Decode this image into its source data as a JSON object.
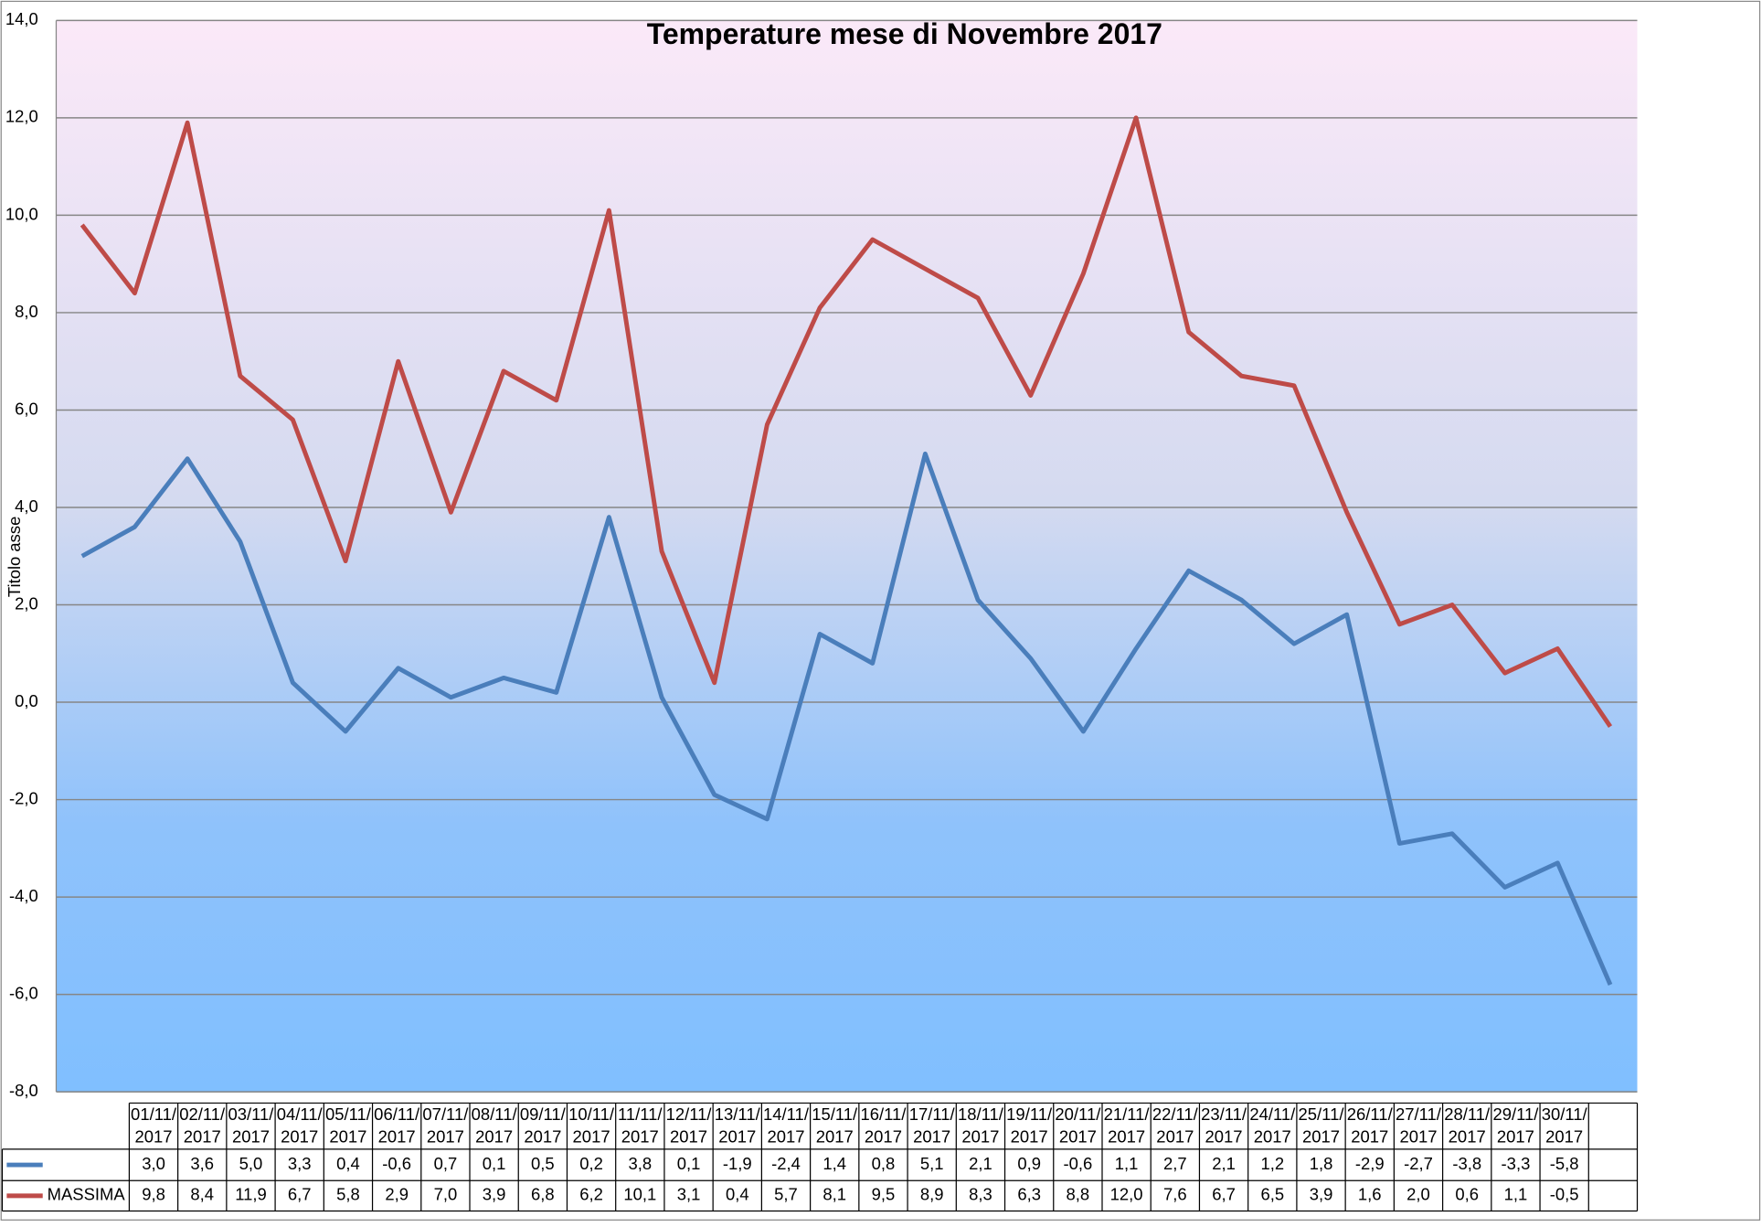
{
  "chart_data": {
    "type": "line",
    "title": "Temperature mese di Novembre 2017",
    "y_label": "Titolo asse",
    "categories": [
      "01/11/2017",
      "02/11/2017",
      "03/11/2017",
      "04/11/2017",
      "05/11/2017",
      "06/11/2017",
      "07/11/2017",
      "08/11/2017",
      "09/11/2017",
      "10/11/2017",
      "11/11/2017",
      "12/11/2017",
      "13/11/2017",
      "14/11/2017",
      "15/11/2017",
      "16/11/2017",
      "17/11/2017",
      "18/11/2017",
      "19/11/2017",
      "20/11/2017",
      "21/11/2017",
      "22/11/2017",
      "23/11/2017",
      "24/11/2017",
      "25/11/2017",
      "26/11/2017",
      "27/11/2017",
      "28/11/2017",
      "29/11/2017",
      "30/11/2017"
    ],
    "series": [
      {
        "name": null,
        "color": "#4a7ebb",
        "values": [
          3.0,
          3.6,
          5.0,
          3.3,
          0.4,
          -0.6,
          0.7,
          0.1,
          0.5,
          0.2,
          3.8,
          0.1,
          -1.9,
          -2.4,
          1.4,
          0.8,
          5.1,
          2.1,
          0.9,
          -0.6,
          1.1,
          2.7,
          2.1,
          1.2,
          1.8,
          -2.9,
          -2.7,
          -3.8,
          -3.3,
          -5.8
        ],
        "value_labels": [
          "3,0",
          "3,6",
          "5,0",
          "3,3",
          "0,4",
          "-0,6",
          "0,7",
          "0,1",
          "0,5",
          "0,2",
          "3,8",
          "0,1",
          "-1,9",
          "-2,4",
          "1,4",
          "0,8",
          "5,1",
          "2,1",
          "0,9",
          "-0,6",
          "1,1",
          "2,7",
          "2,1",
          "1,2",
          "1,8",
          "-2,9",
          "-2,7",
          "-3,8",
          "-3,3",
          "-5,8"
        ]
      },
      {
        "name": "MASSIMA",
        "color": "#be4b48",
        "values": [
          9.8,
          8.4,
          11.9,
          6.7,
          5.8,
          2.9,
          7.0,
          3.9,
          6.8,
          6.2,
          10.1,
          3.1,
          0.4,
          5.7,
          8.1,
          9.5,
          8.9,
          8.3,
          6.3,
          8.8,
          12.0,
          7.6,
          6.7,
          6.5,
          3.9,
          1.6,
          2.0,
          0.6,
          1.1,
          -0.5
        ],
        "value_labels": [
          "9,8",
          "8,4",
          "11,9",
          "6,7",
          "5,8",
          "2,9",
          "7,0",
          "3,9",
          "6,8",
          "6,2",
          "10,1",
          "3,1",
          "0,4",
          "5,7",
          "8,1",
          "9,5",
          "8,9",
          "8,3",
          "6,3",
          "8,8",
          "12,0",
          "7,6",
          "6,7",
          "6,5",
          "3,9",
          "1,6",
          "2,0",
          "0,6",
          "1,1",
          "-0,5"
        ]
      }
    ],
    "ylim": [
      -8,
      14
    ],
    "yticks": [
      {
        "value": -8,
        "label": "-8,0"
      },
      {
        "value": -6,
        "label": "-6,0"
      },
      {
        "value": -4,
        "label": "-4,0"
      },
      {
        "value": -2,
        "label": "-2,0"
      },
      {
        "value": 0,
        "label": "0,0"
      },
      {
        "value": 2,
        "label": "2,0"
      },
      {
        "value": 4,
        "label": "4,0"
      },
      {
        "value": 6,
        "label": "6,0"
      },
      {
        "value": 8,
        "label": "8,0"
      },
      {
        "value": 10,
        "label": "10,0"
      },
      {
        "value": 12,
        "label": "12,0"
      },
      {
        "value": 14,
        "label": "14,0"
      }
    ],
    "grid": true
  }
}
